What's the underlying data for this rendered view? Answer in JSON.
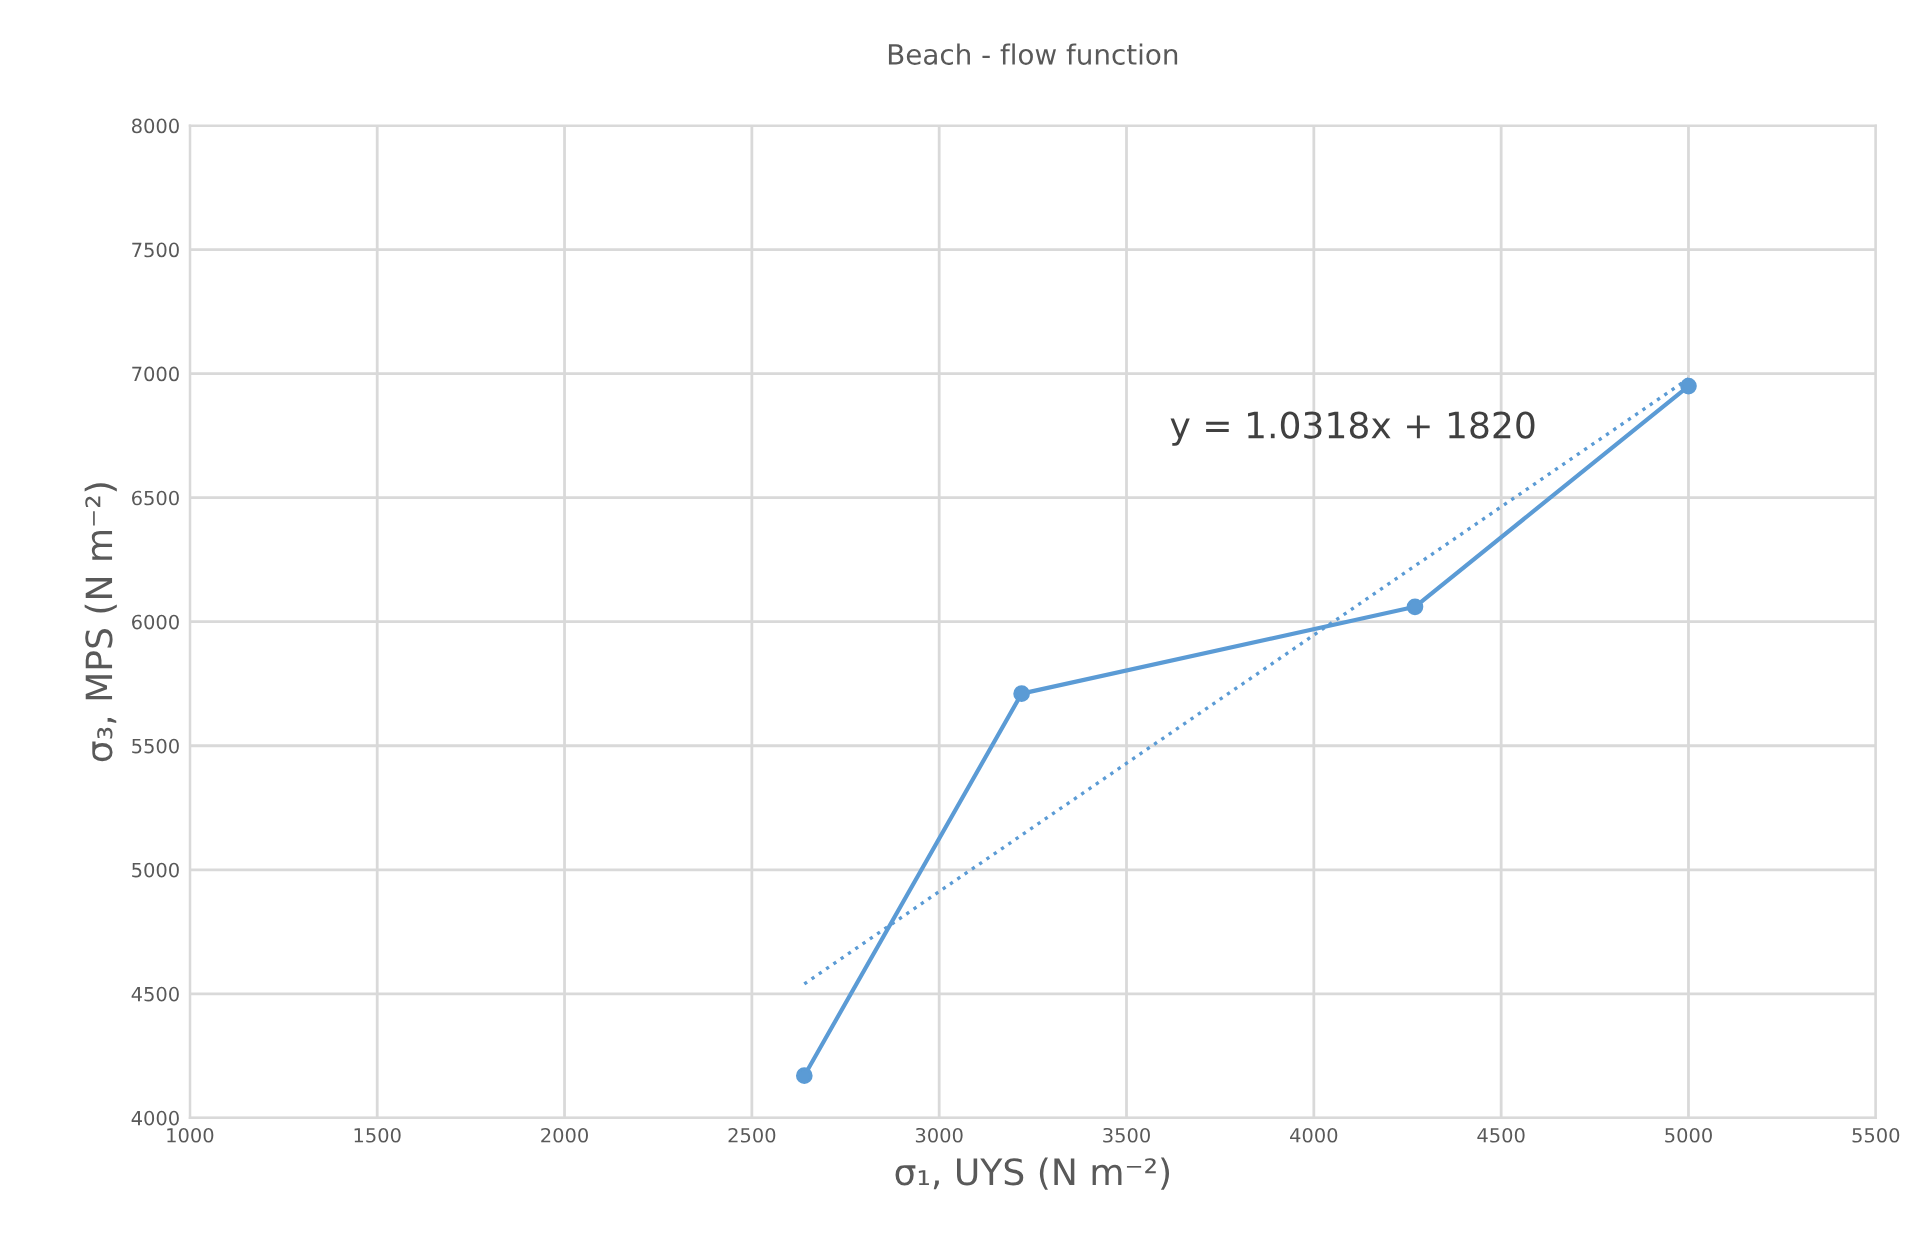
{
  "chart_data": {
    "type": "line",
    "title": "Beach - flow function",
    "xlabel": "σ₁, UYS (N m⁻²)",
    "ylabel": "σ₃, MPS (N m⁻²)",
    "xlim": [
      1000,
      5500
    ],
    "xticks": [
      1000,
      1500,
      2000,
      2500,
      3000,
      3500,
      4000,
      4500,
      5000,
      5500
    ],
    "ylim": [
      4000,
      8000
    ],
    "yticks": [
      4000,
      4500,
      5000,
      5500,
      6000,
      6500,
      7000,
      7500,
      8000
    ],
    "grid": true,
    "marker": "circle",
    "series": [
      {
        "color": "#5b9bd5",
        "x": [
          2640,
          3220,
          4270,
          5000
        ],
        "values": [
          4170,
          5710,
          6060,
          6950
        ],
        "line_style": "solid"
      },
      {
        "color": "#5b9bd5",
        "x": [
          2640,
          5000
        ],
        "values": [
          4540,
          6980
        ],
        "line_style": "dotted",
        "marker": "none"
      }
    ],
    "annotations": [
      "y = 1.0318x + 1820"
    ]
  }
}
